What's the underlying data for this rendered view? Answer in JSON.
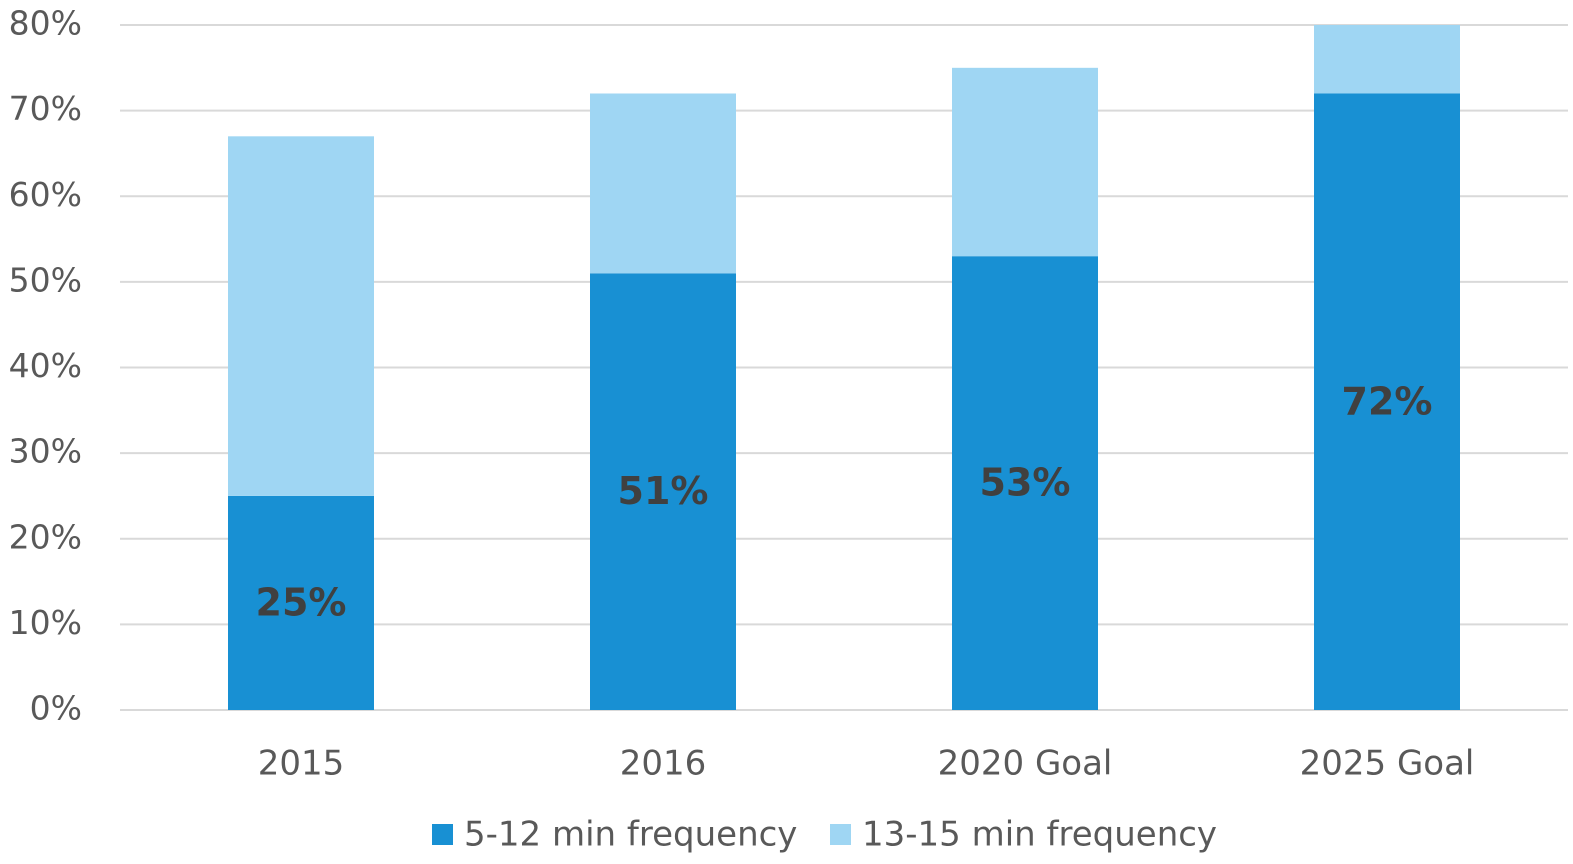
{
  "chart_data": {
    "type": "stacked_bar",
    "categories": [
      "2015",
      "2016",
      "2020 Goal",
      "2025 Goal"
    ],
    "series": [
      {
        "name": "5-12 min frequency",
        "color": "#1890d3",
        "values": [
          25,
          51,
          53,
          72
        ],
        "value_labels": [
          "25%",
          "51%",
          "53%",
          "72%"
        ]
      },
      {
        "name": "13-15 min frequency",
        "color": "#9fd6f3",
        "values": [
          42,
          21,
          22,
          8
        ]
      }
    ],
    "ylim": [
      0,
      80
    ],
    "yticks": [
      {
        "value": 0,
        "label": "0%"
      },
      {
        "value": 10,
        "label": "10%"
      },
      {
        "value": 20,
        "label": "20%"
      },
      {
        "value": 30,
        "label": "30%"
      },
      {
        "value": 40,
        "label": "40%"
      },
      {
        "value": 50,
        "label": "50%"
      },
      {
        "value": 60,
        "label": "60%"
      },
      {
        "value": 70,
        "label": "70%"
      },
      {
        "value": 80,
        "label": "80%"
      }
    ],
    "grid": true,
    "legend": "bottom"
  }
}
